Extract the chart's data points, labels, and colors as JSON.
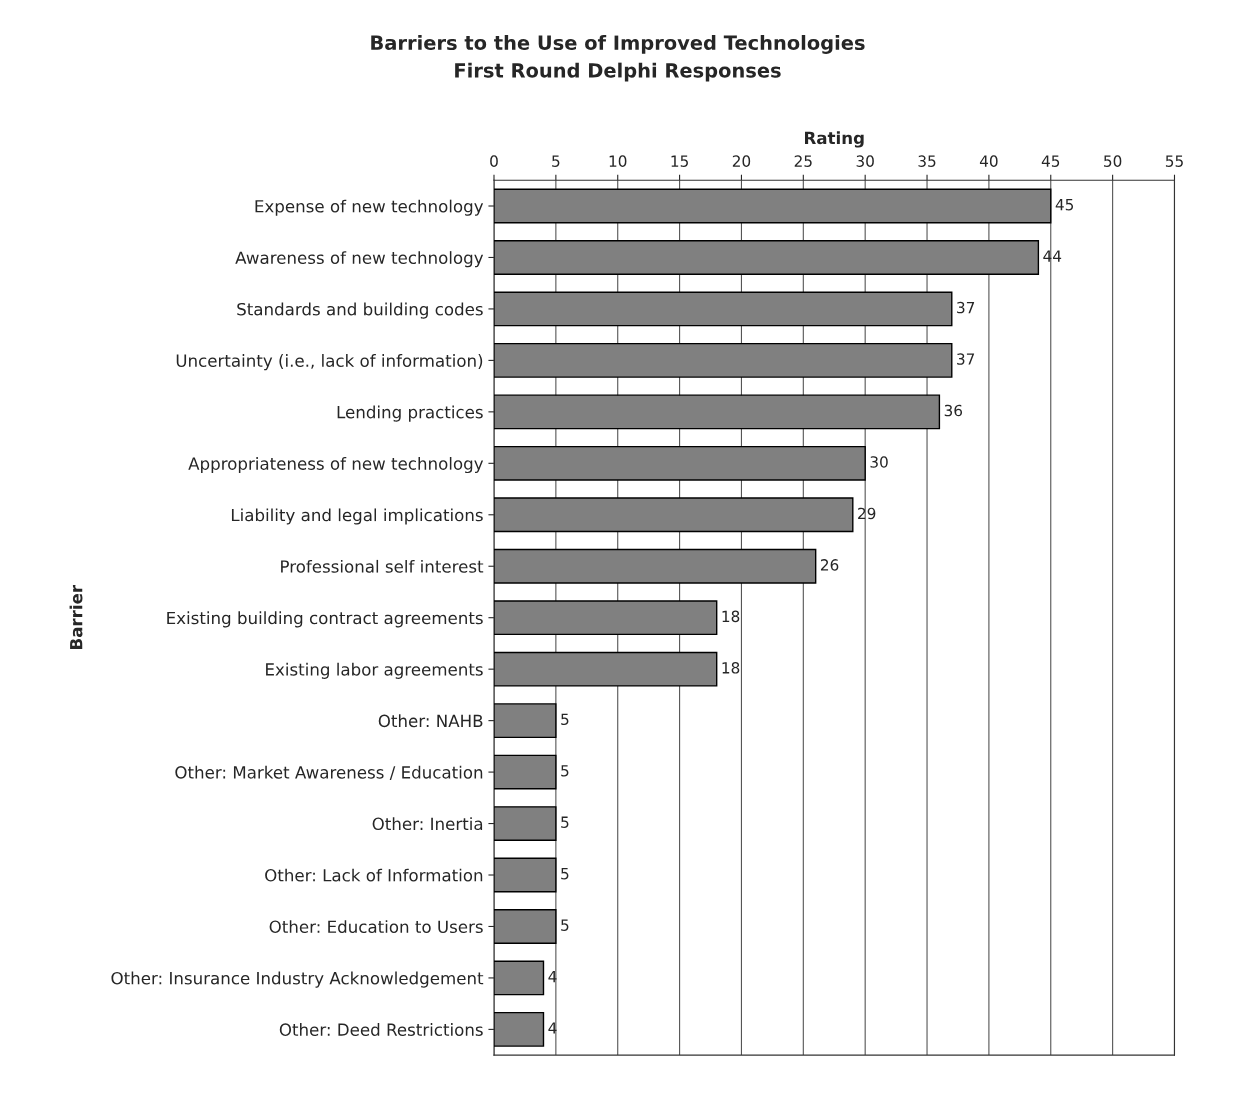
{
  "chart_data": {
    "type": "bar",
    "orientation": "horizontal",
    "title": "Barriers to the Use of Improved Technologies",
    "subtitle": "First Round Delphi Responses",
    "xlabel": "Rating",
    "ylabel": "Barrier",
    "categories": [
      "Expense of new technology",
      "Awareness of new technology",
      "Standards and building codes",
      "Uncertainty (i.e., lack of information)",
      "Lending practices",
      "Appropriateness of new technology",
      "Liability and legal implications",
      "Professional self interest",
      "Existing building contract agreements",
      "Existing labor agreements",
      "Other: NAHB",
      "Other: Market Awareness / Education",
      "Other: Inertia",
      "Other: Lack of Information",
      "Other: Education to Users",
      "Other: Insurance Industry Acknowledgement",
      "Other: Deed Restrictions"
    ],
    "values": [
      45,
      44,
      37,
      37,
      36,
      30,
      29,
      26,
      18,
      18,
      5,
      5,
      5,
      5,
      5,
      4,
      4
    ],
    "color": "#808080",
    "xlim": [
      0,
      55
    ],
    "xticks": [
      0,
      5,
      10,
      15,
      20,
      25,
      30,
      35,
      40,
      45,
      50,
      55
    ],
    "grid": "x",
    "data_labels": true
  }
}
